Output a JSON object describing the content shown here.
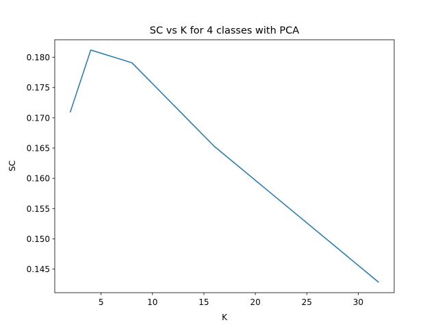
{
  "chart_data": {
    "type": "line",
    "title": "SC vs K for 4 classes with PCA",
    "xlabel": "K",
    "ylabel": "SC",
    "xlim": [
      0.5,
      33.5
    ],
    "ylim": [
      0.1411,
      0.1829
    ],
    "xticks": [
      5,
      10,
      15,
      20,
      25,
      30
    ],
    "yticks": [
      0.145,
      0.15,
      0.155,
      0.16,
      0.165,
      0.17,
      0.175,
      0.18
    ],
    "ytick_labels": [
      "0.145",
      "0.150",
      "0.155",
      "0.160",
      "0.165",
      "0.170",
      "0.175",
      "0.180"
    ],
    "grid": false,
    "series": [
      {
        "color": "#1f77b4",
        "x": [
          2,
          4,
          8,
          16,
          32
        ],
        "y": [
          0.1709,
          0.1812,
          0.1791,
          0.1653,
          0.1428
        ]
      }
    ]
  }
}
